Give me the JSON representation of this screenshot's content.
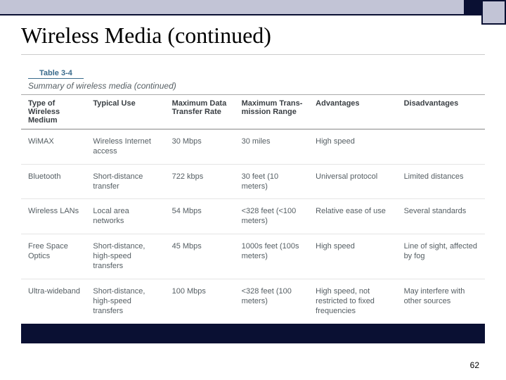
{
  "title": "Wireless Media (continued)",
  "table_label": "Table 3-4",
  "table_caption": "Summary of wireless media (continued)",
  "page_number": "62",
  "headers": {
    "c0": "Type of Wireless Medium",
    "c1": "Typical Use",
    "c2": "Maximum Data Transfer Rate",
    "c3": "Maximum Trans-mission Range",
    "c4": "Advantages",
    "c5": "Disadvantages"
  },
  "rows": [
    {
      "c0": "WiMAX",
      "c1": "Wireless Internet access",
      "c2": "30 Mbps",
      "c3": "30 miles",
      "c4": "High speed",
      "c5": ""
    },
    {
      "c0": "Bluetooth",
      "c1": "Short-distance transfer",
      "c2": "722 kbps",
      "c3": "30 feet (10 meters)",
      "c4": "Universal protocol",
      "c5": "Limited distances"
    },
    {
      "c0": "Wireless LANs",
      "c1": "Local area networks",
      "c2": "54 Mbps",
      "c3": "<328 feet (<100 meters)",
      "c4": "Relative ease of use",
      "c5": "Several standards"
    },
    {
      "c0": "Free Space Optics",
      "c1": "Short-distance, high-speed transfers",
      "c2": "45 Mbps",
      "c3": "1000s feet (100s meters)",
      "c4": "High speed",
      "c5": "Line of sight, affected by fog"
    },
    {
      "c0": "Ultra-wideband",
      "c1": "Short-distance, high-speed transfers",
      "c2": "100 Mbps",
      "c3": "<328 feet (100 meters)",
      "c4": "High speed, not restricted to fixed frequencies",
      "c5": "May interfere with other sources"
    }
  ]
}
